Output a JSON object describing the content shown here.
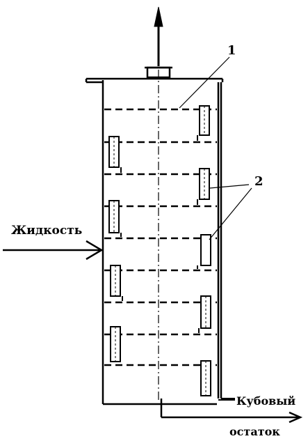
{
  "labels": {
    "liquid": "Жидкость",
    "bottoms_line1": "Кубовый",
    "bottoms_line2": "остаток",
    "callout_1": "1",
    "callout_2": "2"
  },
  "colors": {
    "stroke": "#000000",
    "background": "#ffffff"
  },
  "trays": {
    "count": 8
  },
  "downcomers": {
    "count": 8
  }
}
